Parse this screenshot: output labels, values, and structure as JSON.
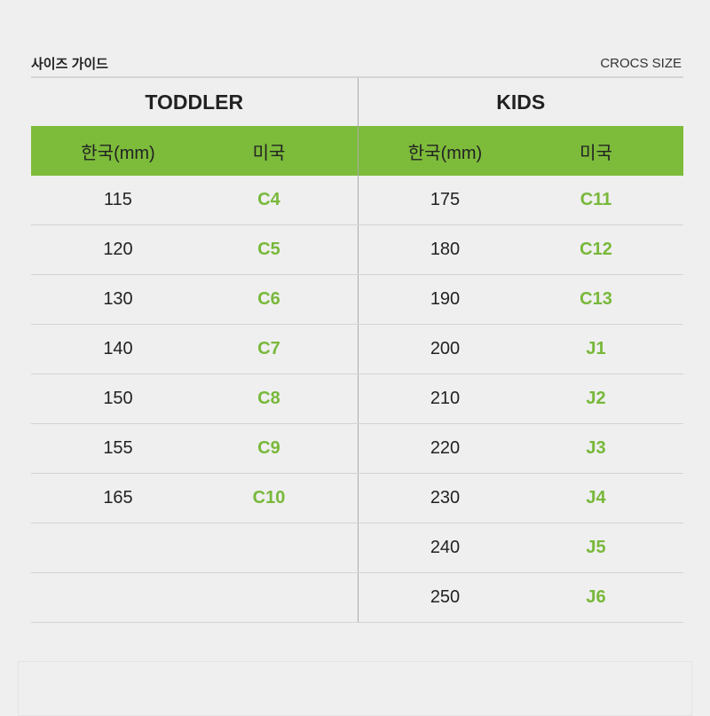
{
  "header": {
    "title": "사이즈 가이드",
    "brand": "CROCS SIZE"
  },
  "sections": [
    {
      "name": "TODDLER"
    },
    {
      "name": "KIDS"
    }
  ],
  "columns": {
    "korea": "한국(mm)",
    "us": "미국"
  },
  "colors": {
    "accent": "#7dbb3b",
    "us_text": "#78b83a"
  },
  "toddler": [
    [
      "115",
      "C4"
    ],
    [
      "120",
      "C5"
    ],
    [
      "130",
      "C6"
    ],
    [
      "140",
      "C7"
    ],
    [
      "150",
      "C8"
    ],
    [
      "155",
      "C9"
    ],
    [
      "165",
      "C10"
    ]
  ],
  "kids": [
    [
      "175",
      "C11"
    ],
    [
      "180",
      "C12"
    ],
    [
      "190",
      "C13"
    ],
    [
      "200",
      "J1"
    ],
    [
      "210",
      "J2"
    ],
    [
      "220",
      "J3"
    ],
    [
      "230",
      "J4"
    ],
    [
      "240",
      "J5"
    ],
    [
      "250",
      "J6"
    ]
  ]
}
